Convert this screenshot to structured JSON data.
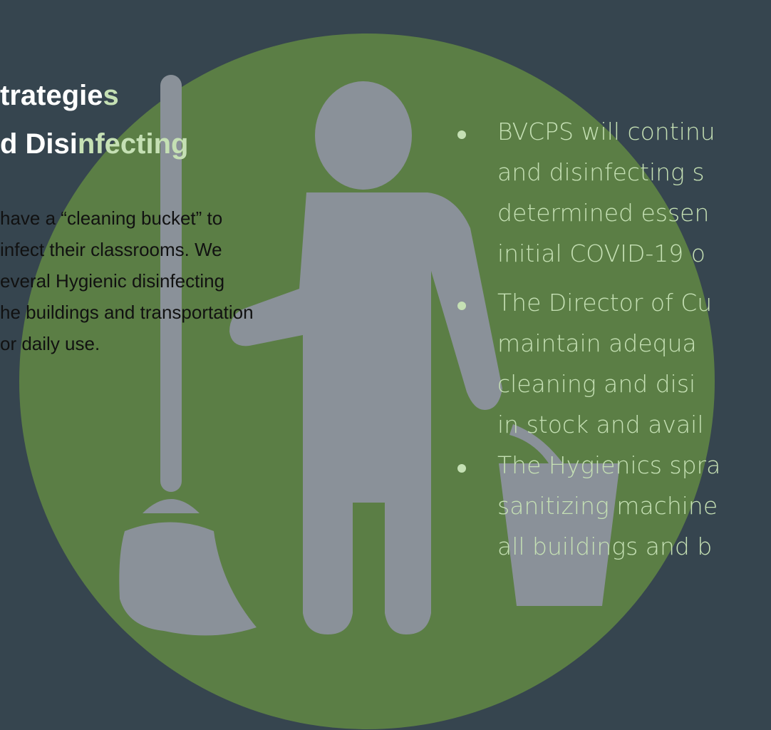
{
  "title": {
    "lines": [
      [
        "trategie",
        "s"
      ],
      [
        "d Disi",
        "nfecting"
      ]
    ]
  },
  "body": {
    "lines": [
      "have a “cleaning bucket” to",
      "infect their classrooms.  We",
      "everal Hygienic disinfecting",
      "he buildings and transportation",
      "or daily use."
    ]
  },
  "bullets": [
    {
      "lines": [
        "BVCPS will continu",
        "and disinfecting s",
        "determined essen",
        "initial COVID-19 o"
      ]
    },
    {
      "lines": [
        "The Director of Cu",
        "maintain adequa",
        "cleaning and disi",
        "in stock and avail"
      ]
    },
    {
      "lines": [
        "The Hygienics spra",
        "sanitizing machine",
        "all buildings and b"
      ]
    }
  ]
}
